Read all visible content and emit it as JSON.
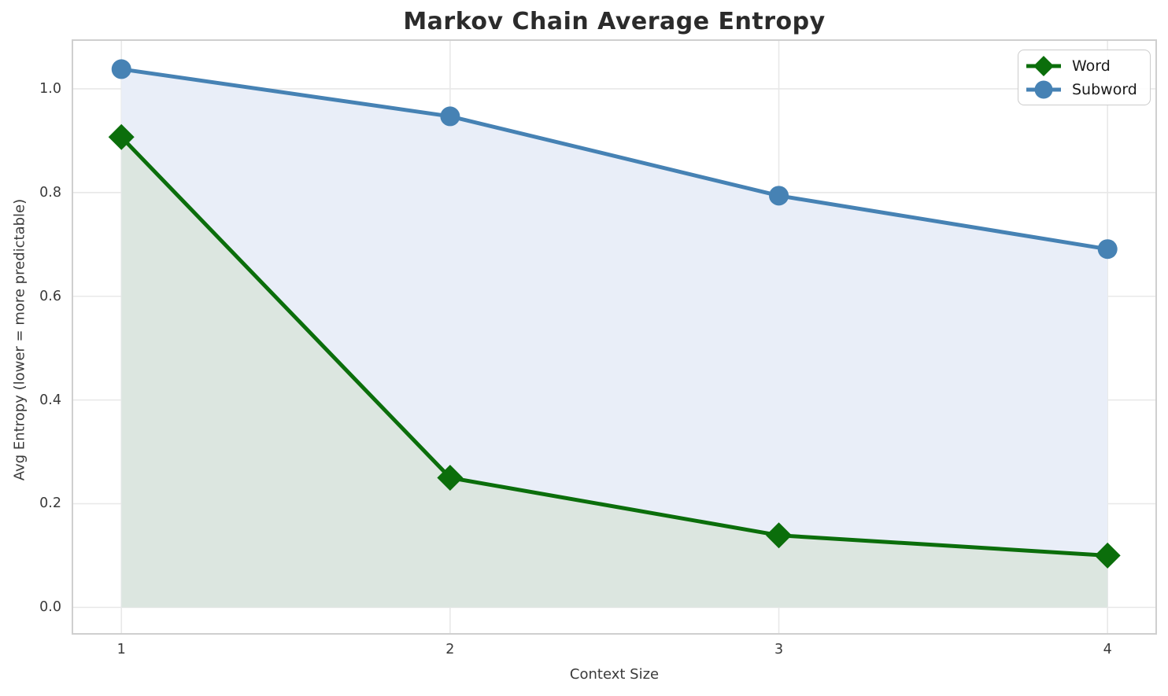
{
  "chart_data": {
    "type": "line",
    "title": "Markov Chain Average Entropy",
    "xlabel": "Context Size",
    "ylabel": "Avg Entropy (lower = more predictable)",
    "x": [
      1,
      2,
      3,
      4
    ],
    "series": [
      {
        "name": "Word",
        "marker": "diamond",
        "color": "#0b6e0b",
        "fill": "#dce6e0",
        "values": [
          0.907,
          0.25,
          0.139,
          0.1
        ]
      },
      {
        "name": "Subword",
        "marker": "circle",
        "color": "#4682b4",
        "fill": "#e9eef8",
        "values": [
          1.038,
          0.947,
          0.794,
          0.691
        ]
      }
    ],
    "xticks": [
      "1",
      "2",
      "3",
      "4"
    ],
    "xtick_values": [
      1,
      2,
      3,
      4
    ],
    "yticks": [
      "0.0",
      "0.2",
      "0.4",
      "0.6",
      "0.8",
      "1.0"
    ],
    "ytick_values": [
      0,
      0.2,
      0.4,
      0.6,
      0.8,
      1.0
    ],
    "xlim": [
      0.851,
      4.148
    ],
    "ylim": [
      -0.051,
      1.094
    ],
    "fill_baseline": 0,
    "grid": true,
    "legend_position": "upper right",
    "colors": {
      "grid": "#e8e8e8",
      "spine": "#cfcfcf"
    }
  }
}
